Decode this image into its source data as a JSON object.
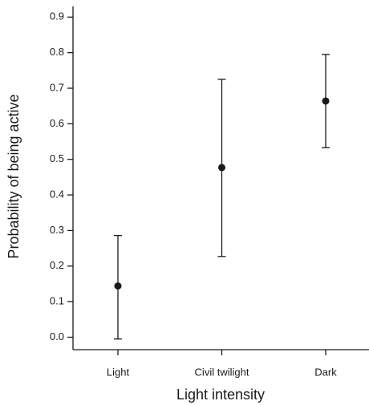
{
  "chart_data": {
    "type": "errorbar",
    "x_label": "Light intensity",
    "y_label": "Probability of being active",
    "categories": [
      "Light",
      "Civil twilight",
      "Dark"
    ],
    "values": [
      0.144,
      0.477,
      0.664
    ],
    "lower": [
      -0.005,
      0.227,
      0.533
    ],
    "upper": [
      0.286,
      0.725,
      0.795
    ],
    "color": "#1a1a1a",
    "ylim": [
      -0.035,
      0.93
    ],
    "yticks": [
      {
        "value": 0,
        "label": "0.0"
      },
      0.1,
      0.2,
      0.3,
      0.4,
      0.5,
      0.6,
      0.7,
      0.8,
      0.9
    ],
    "grid": false
  }
}
